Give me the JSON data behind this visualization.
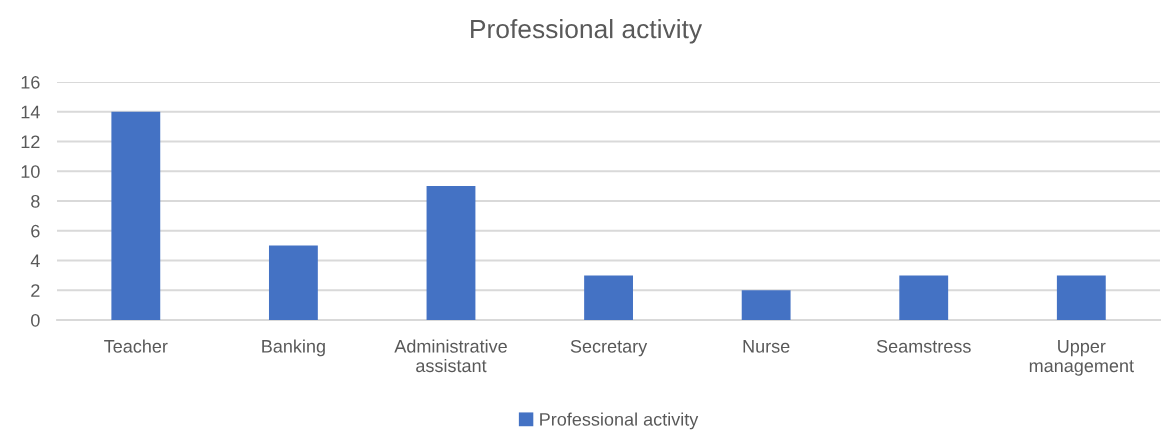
{
  "chart_data": {
    "type": "bar",
    "title": "Professional activity",
    "categories": [
      "Teacher",
      "Banking",
      "Administrative\nassistant",
      "Secretary",
      "Nurse",
      "Seamstress",
      "Upper\nmanagement"
    ],
    "series": [
      {
        "name": "Professional activity",
        "color": "#4472c4",
        "values": [
          14,
          5,
          9,
          3,
          2,
          3,
          3
        ]
      }
    ],
    "ylim": [
      0,
      16
    ],
    "yticks": [
      0,
      2,
      4,
      6,
      8,
      10,
      12,
      14,
      16
    ],
    "grid": "y",
    "legend": "bottom"
  }
}
